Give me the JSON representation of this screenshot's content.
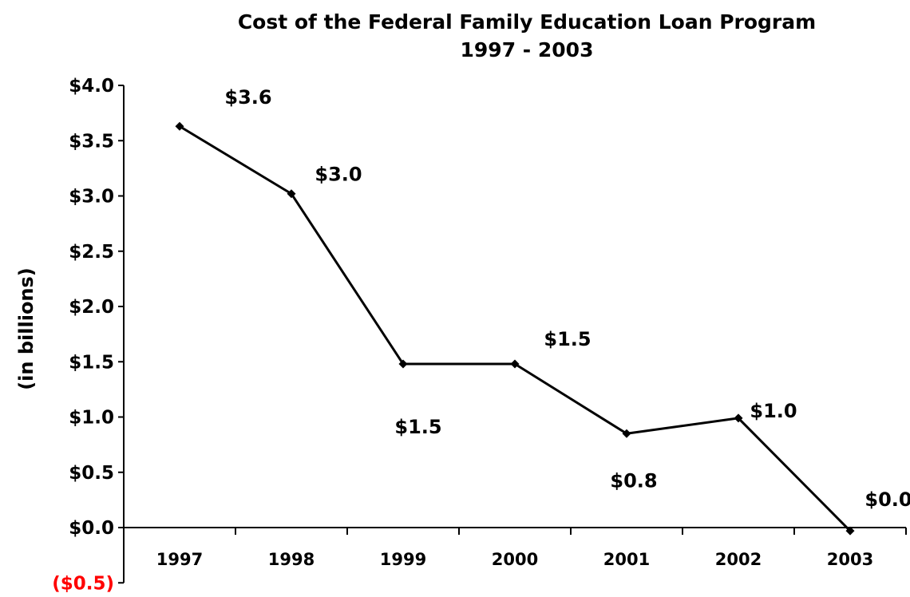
{
  "chart_data": {
    "type": "line",
    "title": "Cost of the Federal Family Education Loan Program",
    "subtitle": "1997 - 2003",
    "xlabel": "",
    "ylabel": "(in billions)",
    "categories": [
      "1997",
      "1998",
      "1999",
      "2000",
      "2001",
      "2002",
      "2003"
    ],
    "series": [
      {
        "values": [
          3.63,
          3.02,
          1.48,
          1.48,
          0.85,
          0.99,
          -0.03
        ],
        "data_labels": [
          "$3.6",
          "$3.0",
          "$1.5",
          "$1.5",
          "$0.8",
          "$1.0",
          "$0.0"
        ]
      }
    ],
    "ylim": [
      -0.5,
      4.0
    ],
    "y_ticks": [
      {
        "value": 4.0,
        "label": "$4.0"
      },
      {
        "value": 3.5,
        "label": "$3.5"
      },
      {
        "value": 3.0,
        "label": "$3.0"
      },
      {
        "value": 2.5,
        "label": "$2.5"
      },
      {
        "value": 2.0,
        "label": "$2.0"
      },
      {
        "value": 1.5,
        "label": "$1.5"
      },
      {
        "value": 1.0,
        "label": "$1.0"
      },
      {
        "value": 0.5,
        "label": "$0.5"
      },
      {
        "value": 0.0,
        "label": "$0.0"
      },
      {
        "value": -0.5,
        "label": "($0.5)"
      }
    ],
    "grid": false,
    "legend": "none",
    "colors": {
      "line": "#000000",
      "negative_tick": "#ff0000",
      "text": "#000000"
    }
  }
}
